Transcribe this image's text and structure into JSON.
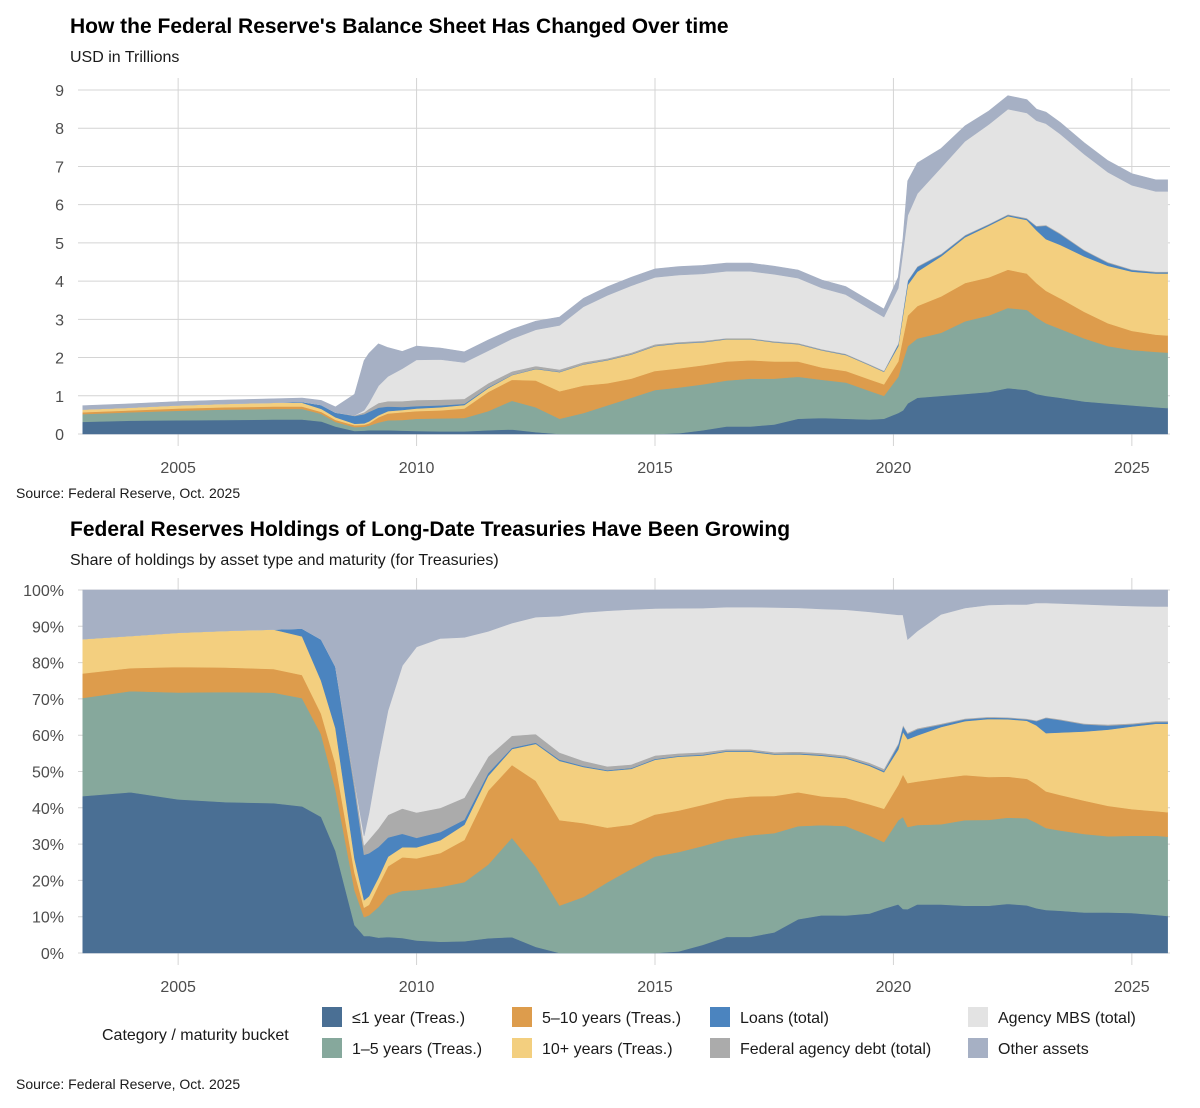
{
  "palette": {
    "le1y": "#4a6f94",
    "y1_5": "#86a89c",
    "y5_10": "#dd9c4c",
    "y10p": "#f3cf7f",
    "loans": "#4b84bf",
    "agency": "#ababab",
    "mbs": "#e3e3e3",
    "other": "#a6b0c4"
  },
  "legend": {
    "title": "Category / maturity bucket",
    "items": [
      {
        "key": "le1y",
        "label": "≤1 year (Treas.)"
      },
      {
        "key": "y1_5",
        "label": "1–5 years (Treas.)"
      },
      {
        "key": "y5_10",
        "label": "5–10 years (Treas.)"
      },
      {
        "key": "y10p",
        "label": "10+ years (Treas.)"
      },
      {
        "key": "loans",
        "label": "Loans (total)"
      },
      {
        "key": "agency",
        "label": "Federal agency debt (total)"
      },
      {
        "key": "mbs",
        "label": "Agency MBS (total)"
      },
      {
        "key": "other",
        "label": "Other assets"
      }
    ]
  },
  "chart_data": [
    {
      "type": "area",
      "stacked": true,
      "title": "How the Federal Reserve's Balance Sheet Has Changed Over time",
      "subtitle": "USD in Trillions",
      "source": "Source: Federal Reserve, Oct. 2025",
      "x_ticks": [
        2005,
        2010,
        2015,
        2020,
        2025
      ],
      "y_ticks": [
        0,
        1,
        2,
        3,
        4,
        5,
        6,
        7,
        8,
        9
      ],
      "xlim": [
        2002.9,
        2025.8
      ],
      "ylim": [
        0,
        9
      ],
      "grid": true,
      "x": [
        2003.0,
        2004.0,
        2005.0,
        2006.0,
        2007.0,
        2007.6,
        2008.0,
        2008.3,
        2008.7,
        2008.9,
        2009.0,
        2009.2,
        2009.4,
        2009.7,
        2010.0,
        2010.5,
        2011.0,
        2011.5,
        2012.0,
        2012.5,
        2013.0,
        2013.5,
        2014.0,
        2014.5,
        2015.0,
        2015.5,
        2016.0,
        2016.5,
        2017.0,
        2017.5,
        2018.0,
        2018.5,
        2019.0,
        2019.5,
        2019.8,
        2020.1,
        2020.2,
        2020.3,
        2020.5,
        2021.0,
        2021.5,
        2022.0,
        2022.4,
        2022.8,
        2023.0,
        2023.2,
        2023.5,
        2024.0,
        2024.5,
        2025.0,
        2025.5,
        2025.75
      ],
      "series": [
        {
          "name": "≤1 year (Treas.)",
          "key": "le1y",
          "values": [
            0.32,
            0.35,
            0.36,
            0.37,
            0.38,
            0.38,
            0.33,
            0.2,
            0.08,
            0.09,
            0.1,
            0.1,
            0.1,
            0.09,
            0.08,
            0.07,
            0.07,
            0.1,
            0.12,
            0.05,
            0.0,
            0.0,
            0.0,
            0.0,
            0.0,
            0.02,
            0.1,
            0.2,
            0.2,
            0.25,
            0.4,
            0.42,
            0.4,
            0.38,
            0.4,
            0.55,
            0.62,
            0.8,
            0.95,
            1.0,
            1.05,
            1.1,
            1.2,
            1.15,
            1.05,
            1.0,
            0.95,
            0.85,
            0.8,
            0.75,
            0.7,
            0.68
          ]
        },
        {
          "name": "1–5 years (Treas.)",
          "key": "y1_5",
          "values": [
            0.2,
            0.22,
            0.25,
            0.27,
            0.28,
            0.28,
            0.2,
            0.12,
            0.1,
            0.1,
            0.12,
            0.2,
            0.26,
            0.28,
            0.32,
            0.34,
            0.35,
            0.5,
            0.75,
            0.65,
            0.4,
            0.55,
            0.75,
            0.95,
            1.15,
            1.2,
            1.2,
            1.2,
            1.25,
            1.2,
            1.1,
            1.0,
            0.95,
            0.75,
            0.6,
            0.95,
            1.3,
            1.5,
            1.55,
            1.65,
            1.9,
            2.0,
            2.1,
            2.1,
            2.0,
            1.9,
            1.8,
            1.65,
            1.5,
            1.45,
            1.45,
            1.45
          ]
        },
        {
          "name": "5–10 years (Treas.)",
          "key": "y5_10",
          "values": [
            0.05,
            0.05,
            0.06,
            0.06,
            0.06,
            0.06,
            0.05,
            0.05,
            0.05,
            0.05,
            0.06,
            0.14,
            0.18,
            0.2,
            0.2,
            0.21,
            0.25,
            0.5,
            0.55,
            0.7,
            0.72,
            0.72,
            0.58,
            0.5,
            0.5,
            0.5,
            0.5,
            0.5,
            0.48,
            0.45,
            0.4,
            0.32,
            0.3,
            0.3,
            0.3,
            0.4,
            0.6,
            0.8,
            0.85,
            0.95,
            1.0,
            1.0,
            1.0,
            0.95,
            0.9,
            0.85,
            0.8,
            0.7,
            0.6,
            0.5,
            0.45,
            0.45
          ]
        },
        {
          "name": "10+ years (Treas.)",
          "key": "y10p",
          "values": [
            0.07,
            0.07,
            0.08,
            0.09,
            0.1,
            0.1,
            0.08,
            0.07,
            0.04,
            0.04,
            0.05,
            0.05,
            0.06,
            0.06,
            0.07,
            0.08,
            0.09,
            0.1,
            0.12,
            0.3,
            0.5,
            0.55,
            0.6,
            0.63,
            0.65,
            0.65,
            0.6,
            0.58,
            0.55,
            0.5,
            0.45,
            0.45,
            0.42,
            0.37,
            0.33,
            0.4,
            0.6,
            0.8,
            0.9,
            1.05,
            1.2,
            1.35,
            1.4,
            1.4,
            1.38,
            1.35,
            1.4,
            1.45,
            1.5,
            1.55,
            1.6,
            1.62
          ]
        },
        {
          "name": "Loans (total)",
          "key": "loans",
          "values": [
            0.0,
            0.0,
            0.0,
            0.0,
            0.0,
            0.02,
            0.1,
            0.12,
            0.2,
            0.24,
            0.25,
            0.2,
            0.12,
            0.08,
            0.06,
            0.05,
            0.03,
            0.02,
            0.01,
            0.01,
            0.01,
            0.01,
            0.01,
            0.01,
            0.01,
            0.01,
            0.01,
            0.01,
            0.01,
            0.01,
            0.01,
            0.01,
            0.01,
            0.01,
            0.01,
            0.05,
            0.08,
            0.1,
            0.12,
            0.05,
            0.04,
            0.03,
            0.03,
            0.03,
            0.1,
            0.35,
            0.28,
            0.15,
            0.08,
            0.04,
            0.03,
            0.03
          ]
        },
        {
          "name": "Federal agency debt (total)",
          "key": "agency",
          "values": [
            0.0,
            0.0,
            0.0,
            0.0,
            0.0,
            0.0,
            0.0,
            0.0,
            0.02,
            0.05,
            0.08,
            0.12,
            0.14,
            0.15,
            0.16,
            0.15,
            0.13,
            0.11,
            0.09,
            0.07,
            0.06,
            0.05,
            0.04,
            0.04,
            0.04,
            0.03,
            0.03,
            0.02,
            0.02,
            0.02,
            0.02,
            0.02,
            0.02,
            0.02,
            0.02,
            0.02,
            0.02,
            0.02,
            0.02,
            0.02,
            0.02,
            0.02,
            0.02,
            0.02,
            0.02,
            0.02,
            0.02,
            0.02,
            0.02,
            0.02,
            0.02,
            0.02
          ]
        },
        {
          "name": "Agency MBS (total)",
          "key": "mbs",
          "values": [
            0.0,
            0.0,
            0.0,
            0.0,
            0.0,
            0.0,
            0.0,
            0.0,
            0.0,
            0.05,
            0.15,
            0.45,
            0.65,
            0.85,
            1.05,
            1.05,
            0.95,
            0.85,
            0.85,
            0.95,
            1.15,
            1.45,
            1.65,
            1.75,
            1.75,
            1.75,
            1.75,
            1.75,
            1.75,
            1.75,
            1.7,
            1.6,
            1.55,
            1.45,
            1.4,
            1.45,
            1.55,
            1.7,
            1.9,
            2.25,
            2.45,
            2.6,
            2.75,
            2.75,
            2.75,
            2.65,
            2.6,
            2.5,
            2.35,
            2.2,
            2.1,
            2.1
          ]
        },
        {
          "name": "Other assets",
          "key": "other",
          "values": [
            0.1,
            0.1,
            0.1,
            0.1,
            0.1,
            0.1,
            0.12,
            0.15,
            0.55,
            1.3,
            1.3,
            1.1,
            0.75,
            0.45,
            0.36,
            0.3,
            0.28,
            0.28,
            0.25,
            0.22,
            0.22,
            0.22,
            0.22,
            0.22,
            0.22,
            0.22,
            0.22,
            0.21,
            0.21,
            0.21,
            0.21,
            0.21,
            0.21,
            0.21,
            0.21,
            0.28,
            0.35,
            0.9,
            0.8,
            0.5,
            0.4,
            0.35,
            0.35,
            0.35,
            0.3,
            0.3,
            0.3,
            0.3,
            0.3,
            0.3,
            0.3,
            0.3
          ]
        }
      ]
    },
    {
      "type": "area",
      "stacked": true,
      "percent": true,
      "title": "Federal Reserves Holdings of Long-Date Treasuries Have Been Growing",
      "subtitle": "Share of holdings by asset type and maturity (for Treasuries)",
      "source": "Source: Federal Reserve, Oct. 2025",
      "x_ticks": [
        2005,
        2010,
        2015,
        2020,
        2025
      ],
      "y_ticks": [
        0,
        10,
        20,
        30,
        40,
        50,
        60,
        70,
        80,
        90,
        100
      ],
      "y_tick_labels": [
        "0%",
        "10%",
        "20%",
        "30%",
        "40%",
        "50%",
        "60%",
        "70%",
        "80%",
        "90%",
        "100%"
      ],
      "xlim": [
        2002.9,
        2025.8
      ],
      "ylim": [
        0,
        100
      ],
      "grid": true,
      "normalize_from_series_of": 0
    }
  ]
}
